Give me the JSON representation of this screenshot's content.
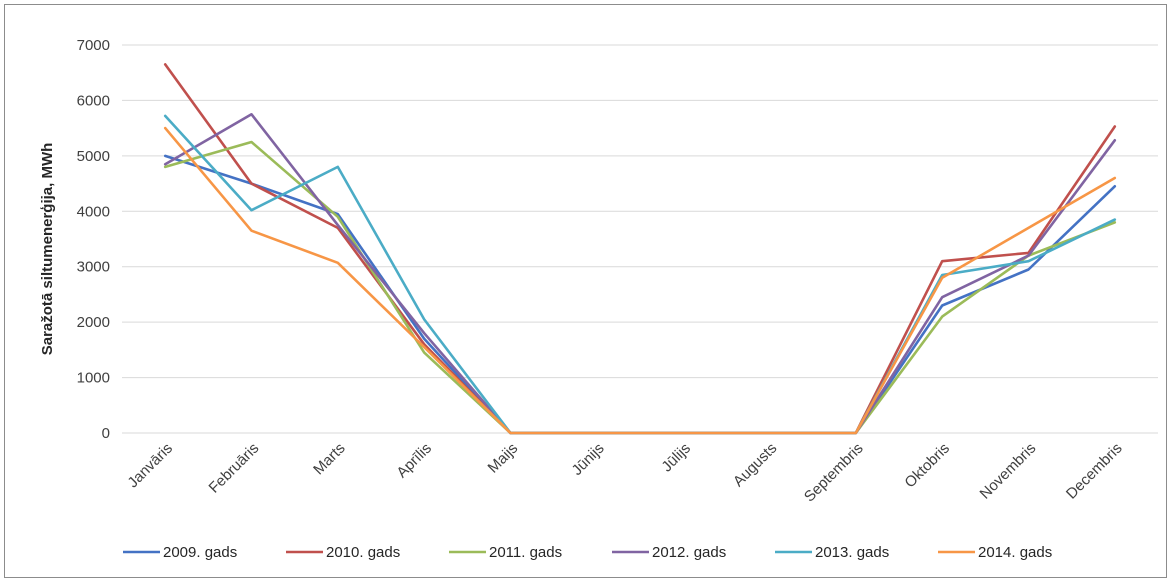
{
  "chart_data": {
    "type": "line",
    "title": "",
    "xlabel": "",
    "ylabel": "Saražotā siltumenerģija, MWh",
    "ylim": [
      0,
      7000
    ],
    "yticks": [
      0,
      1000,
      2000,
      3000,
      4000,
      5000,
      6000,
      7000
    ],
    "grid": true,
    "legend_position": "bottom",
    "categories": [
      "Janvāris",
      "Februāris",
      "Marts",
      "Aprīlis",
      "Maijs",
      "Jūnijs",
      "Jūlijs",
      "Augusts",
      "Septembris",
      "Oktobris",
      "Novembris",
      "Decembris"
    ],
    "series": [
      {
        "name": "2009. gads",
        "color": "#4472c4",
        "values": [
          5000,
          4500,
          3950,
          1700,
          0,
          0,
          0,
          0,
          0,
          2300,
          2950,
          4450
        ]
      },
      {
        "name": "2010. gads",
        "color": "#c0504d",
        "values": [
          6650,
          4500,
          3700,
          1600,
          0,
          0,
          0,
          0,
          0,
          3100,
          3250,
          5530
        ]
      },
      {
        "name": "2011. gads",
        "color": "#9bbb59",
        "values": [
          4800,
          5250,
          3900,
          1450,
          0,
          0,
          0,
          0,
          0,
          2100,
          3200,
          3800
        ]
      },
      {
        "name": "2012. gads",
        "color": "#8064a2",
        "values": [
          4850,
          5750,
          3750,
          1800,
          0,
          0,
          0,
          0,
          0,
          2450,
          3200,
          5280
        ]
      },
      {
        "name": "2013. gads",
        "color": "#4bacc6",
        "values": [
          5720,
          4020,
          4800,
          2050,
          0,
          0,
          0,
          0,
          0,
          2850,
          3100,
          3850
        ]
      },
      {
        "name": "2014. gads",
        "color": "#f79646",
        "values": [
          5500,
          3650,
          3070,
          1550,
          0,
          0,
          0,
          0,
          0,
          2800,
          3700,
          4600
        ]
      }
    ]
  }
}
